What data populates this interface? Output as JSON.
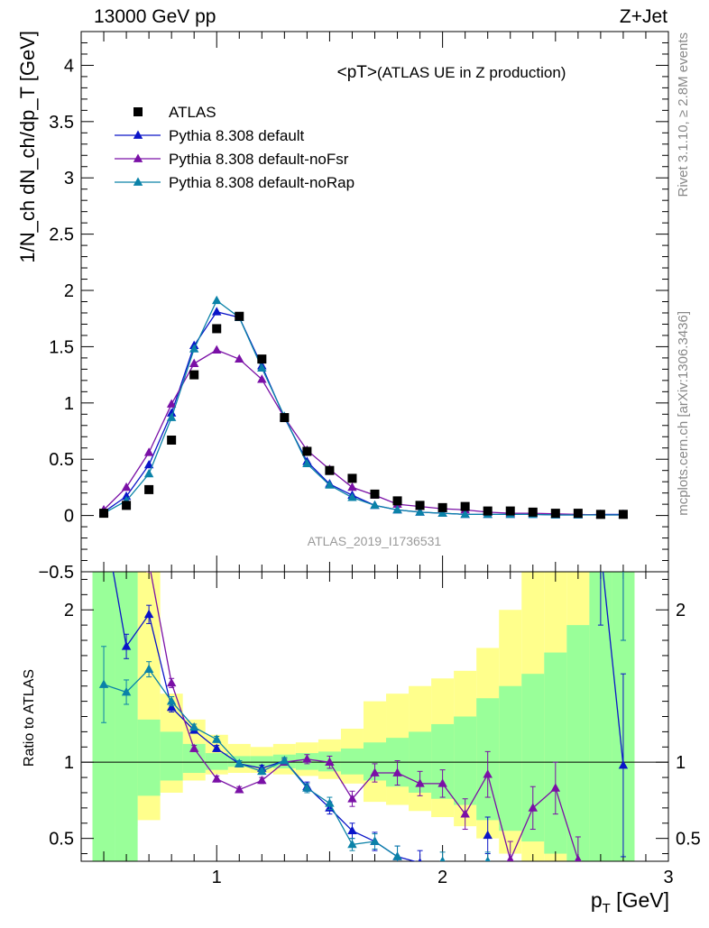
{
  "header": {
    "beam": "13000 GeV pp",
    "process": "Z+Jet"
  },
  "side_labels": {
    "rivet": "Rivet 3.1.10, ≥ 2.8M events",
    "mcplots": "mcplots.cern.ch [arXiv:1306.3436]"
  },
  "chart_data": {
    "type": "scatter",
    "title": "<pT>",
    "subtitle": " (ATLAS UE in Z production)",
    "watermark": "ATLAS_2019_I1736531",
    "xlabel_main": "p",
    "xlabel_sub": "T",
    "xlabel_unit": " [GeV]",
    "ylabel": "1/N_ch dN_ch/dp_T [GeV]",
    "ratio_ylabel": "Ratio to ATLAS",
    "xlim": [
      0.4,
      3.0
    ],
    "ylim": [
      -0.5,
      4.3
    ],
    "ratio_ylim": [
      0.35,
      2.25
    ],
    "x_ticks": [
      "1",
      "2",
      "3"
    ],
    "y_ticks": [
      "−0.5",
      "0",
      "0.5",
      "1",
      "1.5",
      "2",
      "2.5",
      "3",
      "3.5",
      "4"
    ],
    "ratio_ticks": [
      "0.5",
      "1",
      "2"
    ],
    "x": [
      0.5,
      0.6,
      0.7,
      0.8,
      0.9,
      1.0,
      1.1,
      1.2,
      1.3,
      1.4,
      1.5,
      1.6,
      1.7,
      1.8,
      1.9,
      2.0,
      2.1,
      2.2,
      2.3,
      2.4,
      2.5,
      2.6,
      2.7,
      2.8
    ],
    "bins": [
      0.45,
      0.55,
      0.65,
      0.75,
      0.85,
      0.95,
      1.05,
      1.15,
      1.25,
      1.35,
      1.45,
      1.55,
      1.65,
      1.75,
      1.85,
      1.95,
      2.05,
      2.15,
      2.25,
      2.35,
      2.45,
      2.55,
      2.65,
      2.75,
      2.85
    ],
    "legend_position": "top-left",
    "data": {
      "name": "ATLAS",
      "values": [
        0.02,
        0.09,
        0.23,
        0.67,
        1.25,
        1.66,
        1.77,
        1.39,
        0.87,
        0.57,
        0.4,
        0.33,
        0.19,
        0.13,
        0.09,
        0.07,
        0.08,
        0.04,
        0.04,
        0.03,
        0.02,
        0.02,
        0.01,
        0.01
      ],
      "band_inner": [
        [
          0.35,
          2.25
        ],
        [
          0.35,
          2.25
        ],
        [
          0.78,
          1.28
        ],
        [
          0.88,
          1.2
        ],
        [
          0.93,
          1.12
        ],
        [
          0.95,
          1.06
        ],
        [
          0.97,
          1.04
        ],
        [
          0.97,
          1.04
        ],
        [
          0.96,
          1.05
        ],
        [
          0.95,
          1.06
        ],
        [
          0.94,
          1.07
        ],
        [
          0.92,
          1.09
        ],
        [
          0.88,
          1.13
        ],
        [
          0.84,
          1.16
        ],
        [
          0.8,
          1.2
        ],
        [
          0.76,
          1.25
        ],
        [
          0.72,
          1.3
        ],
        [
          0.62,
          1.42
        ],
        [
          0.55,
          1.5
        ],
        [
          0.48,
          1.58
        ],
        [
          0.4,
          1.72
        ],
        [
          0.35,
          1.9
        ],
        [
          0.35,
          2.25
        ],
        [
          0.35,
          2.25
        ]
      ],
      "band_outer": [
        [
          0.35,
          2.25
        ],
        [
          0.58,
          2.25
        ],
        [
          0.62,
          2.25
        ],
        [
          0.8,
          1.45
        ],
        [
          0.88,
          1.28
        ],
        [
          0.92,
          1.18
        ],
        [
          0.93,
          1.12
        ],
        [
          0.93,
          1.1
        ],
        [
          0.92,
          1.12
        ],
        [
          0.91,
          1.13
        ],
        [
          0.89,
          1.15
        ],
        [
          0.86,
          1.22
        ],
        [
          0.74,
          1.4
        ],
        [
          0.72,
          1.45
        ],
        [
          0.68,
          1.5
        ],
        [
          0.64,
          1.55
        ],
        [
          0.58,
          1.6
        ],
        [
          0.5,
          1.75
        ],
        [
          0.4,
          2.0
        ],
        [
          0.35,
          2.25
        ],
        [
          0.35,
          2.25
        ],
        [
          0.35,
          2.25
        ],
        [
          0.35,
          2.25
        ],
        [
          0.35,
          2.25
        ]
      ]
    },
    "series": [
      {
        "name": "Pythia 8.308 default",
        "color": "#0a14c8",
        "values": [
          0.03,
          0.17,
          0.45,
          0.91,
          1.51,
          1.81,
          1.76,
          1.33,
          0.87,
          0.48,
          0.28,
          0.18,
          0.09,
          0.05,
          0.03,
          0.02,
          0.01,
          0.01,
          0.01,
          0.01,
          0.005,
          0.005,
          0.01,
          0.01
        ],
        "ratio": [
          2.6,
          1.76,
          1.97,
          1.36,
          1.21,
          1.09,
          0.99,
          0.96,
          1.01,
          0.84,
          0.7,
          0.55,
          0.48,
          0.38,
          0.34,
          null,
          null,
          0.52,
          null,
          null,
          null,
          null,
          2.4,
          0.98
        ],
        "ratio_err": [
          0.3,
          0.08,
          0.06,
          0.03,
          0.02,
          0.02,
          0.02,
          0.02,
          0.02,
          0.03,
          0.04,
          0.05,
          0.06,
          0.07,
          0.08,
          0,
          0,
          0.12,
          0,
          0,
          0,
          0,
          0.5,
          0.6
        ]
      },
      {
        "name": "Pythia 8.308 default-noFsr",
        "color": "#7a10a6",
        "values": [
          0.05,
          0.25,
          0.56,
          0.99,
          1.35,
          1.47,
          1.39,
          1.21,
          0.87,
          0.58,
          0.41,
          0.25,
          0.18,
          0.1,
          0.08,
          0.06,
          0.05,
          0.03,
          0.02,
          0.02,
          0.015,
          0.01,
          0.005,
          0.005
        ],
        "ratio": [
          3.0,
          2.8,
          2.31,
          1.52,
          1.09,
          0.89,
          0.82,
          0.88,
          1.0,
          1.02,
          1.0,
          0.76,
          0.93,
          0.93,
          0.86,
          0.86,
          0.66,
          0.92,
          0.36,
          0.7,
          0.83,
          0.36,
          null,
          2.4
        ],
        "ratio_err": [
          0.2,
          0.08,
          0.06,
          0.03,
          0.02,
          0.02,
          0.02,
          0.02,
          0.02,
          0.03,
          0.04,
          0.05,
          0.06,
          0.08,
          0.08,
          0.09,
          0.1,
          0.15,
          0.12,
          0.14,
          0.17,
          0.15,
          0,
          0.6
        ]
      },
      {
        "name": "Pythia 8.308 default-noRap",
        "color": "#0a82a8",
        "values": [
          0.02,
          0.13,
          0.37,
          0.87,
          1.48,
          1.91,
          1.76,
          1.31,
          0.88,
          0.46,
          0.27,
          0.16,
          0.09,
          0.05,
          0.03,
          0.02,
          0.01,
          0.01,
          0.01,
          0.01,
          0.005,
          0.005,
          0.005,
          0.005
        ],
        "ratio": [
          1.51,
          1.46,
          1.61,
          1.4,
          1.23,
          1.15,
          0.99,
          0.94,
          1.01,
          0.83,
          0.73,
          0.46,
          0.48,
          0.38,
          null,
          0.35,
          null,
          0.35,
          null,
          null,
          null,
          null,
          null,
          2.4
        ],
        "ratio_err": [
          0.25,
          0.08,
          0.05,
          0.03,
          0.02,
          0.02,
          0.02,
          0.02,
          0.02,
          0.03,
          0.04,
          0.04,
          0.05,
          0.07,
          0,
          0.06,
          0,
          0.06,
          0,
          0,
          0,
          0,
          0,
          0.6
        ]
      }
    ]
  }
}
